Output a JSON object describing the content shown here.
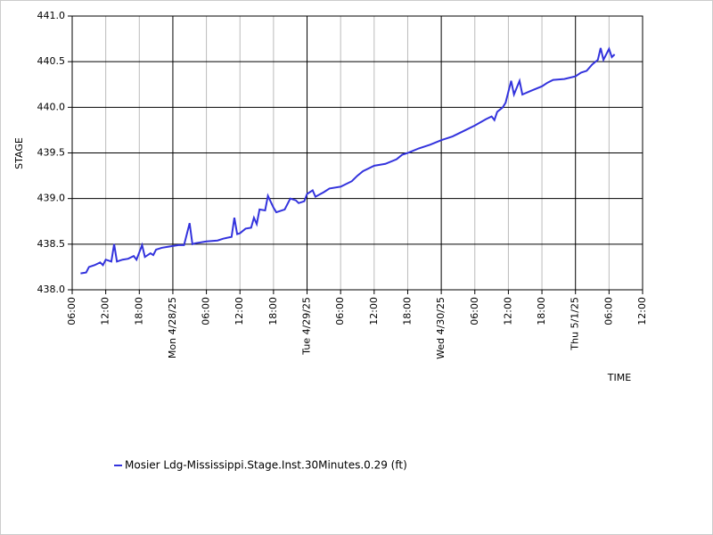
{
  "chart_data": {
    "type": "line",
    "y_label": "STAGE",
    "x_label": "TIME",
    "ylim": [
      438.0,
      441.0
    ],
    "yticks": [
      {
        "value": 438,
        "label": "438.0"
      },
      {
        "value": 438.5,
        "label": "438.5"
      },
      {
        "value": 439,
        "label": "439.0"
      },
      {
        "value": 439.5,
        "label": "439.5"
      },
      {
        "value": 440,
        "label": "440.0"
      },
      {
        "value": 440.5,
        "label": "440.5"
      },
      {
        "value": 441,
        "label": "441.0"
      }
    ],
    "xlim": [
      "2025-04-27T06:00",
      "2025-05-01T12:00"
    ],
    "xticks": [
      {
        "value": "2025-04-27T06:00",
        "label": "06:00"
      },
      {
        "value": "2025-04-27T12:00",
        "label": "12:00"
      },
      {
        "value": "2025-04-27T18:00",
        "label": "18:00"
      },
      {
        "value": "2025-04-28T00:00",
        "label": "Mon 4/28/25"
      },
      {
        "value": "2025-04-28T06:00",
        "label": "06:00"
      },
      {
        "value": "2025-04-28T12:00",
        "label": "12:00"
      },
      {
        "value": "2025-04-28T18:00",
        "label": "18:00"
      },
      {
        "value": "2025-04-29T00:00",
        "label": "Tue 4/29/25"
      },
      {
        "value": "2025-04-29T06:00",
        "label": "06:00"
      },
      {
        "value": "2025-04-29T12:00",
        "label": "12:00"
      },
      {
        "value": "2025-04-29T18:00",
        "label": "18:00"
      },
      {
        "value": "2025-04-30T00:00",
        "label": "Wed 4/30/25"
      },
      {
        "value": "2025-04-30T06:00",
        "label": "06:00"
      },
      {
        "value": "2025-04-30T12:00",
        "label": "12:00"
      },
      {
        "value": "2025-04-30T18:00",
        "label": "18:00"
      },
      {
        "value": "2025-05-01T00:00",
        "label": "Thu 5/1/25"
      },
      {
        "value": "2025-05-01T06:00",
        "label": "06:00"
      },
      {
        "value": "2025-05-01T12:00",
        "label": "12:00"
      }
    ],
    "grid": true,
    "x": [
      "2025-04-27T07:30",
      "2025-04-27T08:30",
      "2025-04-27T09:00",
      "2025-04-27T10:00",
      "2025-04-27T11:00",
      "2025-04-27T11:30",
      "2025-04-27T12:00",
      "2025-04-27T13:00",
      "2025-04-27T13:30",
      "2025-04-27T14:00",
      "2025-04-27T15:00",
      "2025-04-27T16:00",
      "2025-04-27T17:00",
      "2025-04-27T17:30",
      "2025-04-27T18:30",
      "2025-04-27T19:00",
      "2025-04-27T20:00",
      "2025-04-27T20:30",
      "2025-04-27T21:00",
      "2025-04-27T22:00",
      "2025-04-27T23:00",
      "2025-04-28T00:00",
      "2025-04-28T01:00",
      "2025-04-28T02:00",
      "2025-04-28T03:00",
      "2025-04-28T03:30",
      "2025-04-28T04:00",
      "2025-04-28T06:00",
      "2025-04-28T08:00",
      "2025-04-28T09:00",
      "2025-04-28T10:30",
      "2025-04-28T11:00",
      "2025-04-28T11:30",
      "2025-04-28T12:00",
      "2025-04-28T13:00",
      "2025-04-28T14:00",
      "2025-04-28T14:30",
      "2025-04-28T15:00",
      "2025-04-28T15:30",
      "2025-04-28T16:30",
      "2025-04-28T17:00",
      "2025-04-28T18:00",
      "2025-04-28T18:30",
      "2025-04-28T20:00",
      "2025-04-28T21:00",
      "2025-04-28T22:00",
      "2025-04-28T22:30",
      "2025-04-28T23:30",
      "2025-04-29T00:00",
      "2025-04-29T00:30",
      "2025-04-29T01:00",
      "2025-04-29T01:30",
      "2025-04-29T03:00",
      "2025-04-29T04:00",
      "2025-04-29T06:00",
      "2025-04-29T08:00",
      "2025-04-29T09:00",
      "2025-04-29T10:00",
      "2025-04-29T12:00",
      "2025-04-29T14:00",
      "2025-04-29T16:00",
      "2025-04-29T17:00",
      "2025-04-29T18:00",
      "2025-04-29T20:00",
      "2025-04-29T22:00",
      "2025-04-30T00:00",
      "2025-04-30T02:00",
      "2025-04-30T04:00",
      "2025-04-30T06:00",
      "2025-04-30T08:00",
      "2025-04-30T09:00",
      "2025-04-30T09:30",
      "2025-04-30T10:00",
      "2025-04-30T11:00",
      "2025-04-30T11:30",
      "2025-04-30T12:30",
      "2025-04-30T13:00",
      "2025-04-30T14:00",
      "2025-04-30T14:30",
      "2025-04-30T16:00",
      "2025-04-30T18:00",
      "2025-04-30T19:00",
      "2025-04-30T20:00",
      "2025-04-30T22:00",
      "2025-05-01T00:00",
      "2025-05-01T01:00",
      "2025-05-01T02:00",
      "2025-05-01T03:00",
      "2025-05-01T04:00",
      "2025-05-01T04:30",
      "2025-05-01T05:00",
      "2025-05-01T06:00",
      "2025-05-01T06:30",
      "2025-05-01T07:00"
    ],
    "series": [
      {
        "name": "Mosier Ldg-Mississippi.Stage.Inst.30Minutes.0.29 (ft)",
        "color": "#3333dd",
        "values": [
          438.18,
          438.19,
          438.25,
          438.27,
          438.3,
          438.27,
          438.33,
          438.31,
          438.5,
          438.31,
          438.33,
          438.34,
          438.37,
          438.33,
          438.49,
          438.36,
          438.4,
          438.38,
          438.44,
          438.46,
          438.47,
          438.48,
          438.49,
          438.49,
          438.73,
          438.5,
          438.51,
          438.53,
          438.54,
          438.56,
          438.58,
          438.79,
          438.61,
          438.62,
          438.67,
          438.68,
          438.79,
          438.72,
          438.88,
          438.87,
          439.03,
          438.9,
          438.85,
          438.88,
          439.0,
          438.98,
          438.95,
          438.97,
          439.05,
          439.07,
          439.09,
          439.02,
          439.07,
          439.11,
          439.13,
          439.19,
          439.25,
          439.3,
          439.36,
          439.38,
          439.43,
          439.48,
          439.5,
          439.55,
          439.59,
          439.64,
          439.68,
          439.74,
          439.8,
          439.87,
          439.9,
          439.86,
          439.95,
          440.0,
          440.05,
          440.29,
          440.14,
          440.29,
          440.14,
          440.18,
          440.23,
          440.27,
          440.3,
          440.31,
          440.34,
          440.38,
          440.4,
          440.47,
          440.52,
          440.65,
          440.52,
          440.64,
          440.55,
          440.58
        ]
      }
    ]
  }
}
